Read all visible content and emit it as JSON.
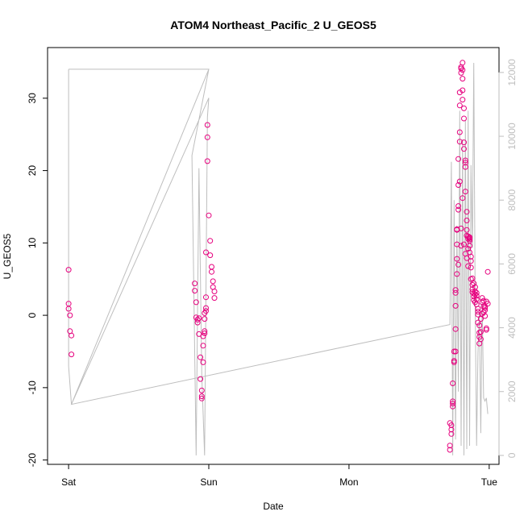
{
  "chart_data": {
    "type": "scatter",
    "title": "ATOM4 Northeast_Pacific_2 U_GEOS5",
    "xlabel": "Date",
    "ylabel": "U_GEOS5",
    "x_ticks": [
      {
        "day": 0,
        "label": "Sat"
      },
      {
        "day": 1,
        "label": "Sun"
      },
      {
        "day": 2,
        "label": "Mon"
      },
      {
        "day": 3,
        "label": "Tue"
      }
    ],
    "xlim": [
      -0.15,
      3.07
    ],
    "ylim": [
      -20.6,
      37.0
    ],
    "y_ticks": [
      -20,
      -10,
      0,
      10,
      20,
      30
    ],
    "y2_ticks": [
      0,
      2000,
      4000,
      6000,
      8000,
      10000,
      12000
    ],
    "y2lim": [
      -280,
      12780
    ],
    "grid": false,
    "colors": {
      "points": "#e6007e",
      "altitude_line": "#bebebe",
      "axis": "#000000",
      "right_axis": "#bebebe"
    },
    "series": [
      {
        "role": "points",
        "points": [
          [
            0.0,
            6.3
          ],
          [
            0.0,
            1.6
          ],
          [
            0.0,
            0.9
          ],
          [
            0.01,
            0.0
          ],
          [
            0.01,
            -2.2
          ],
          [
            0.02,
            -2.8
          ],
          [
            0.02,
            -5.4
          ],
          [
            0.9,
            4.4
          ],
          [
            0.9,
            3.4
          ],
          [
            0.91,
            1.8
          ],
          [
            0.91,
            -0.3
          ],
          [
            0.92,
            -0.6
          ],
          [
            0.92,
            -1.0
          ],
          [
            0.93,
            -0.4
          ],
          [
            0.93,
            -2.6
          ],
          [
            0.94,
            -5.8
          ],
          [
            0.94,
            -8.8
          ],
          [
            0.95,
            -10.4
          ],
          [
            0.95,
            -11.2
          ],
          [
            0.95,
            -11.5
          ],
          [
            0.96,
            -6.5
          ],
          [
            0.96,
            -4.2
          ],
          [
            0.96,
            -2.9
          ],
          [
            0.97,
            -2.2
          ],
          [
            0.97,
            -2.5
          ],
          [
            0.97,
            -0.5
          ],
          [
            0.97,
            0.3
          ],
          [
            0.98,
            0.6
          ],
          [
            0.98,
            1.0
          ],
          [
            0.98,
            2.5
          ],
          [
            0.98,
            8.7
          ],
          [
            0.99,
            21.3
          ],
          [
            0.99,
            24.6
          ],
          [
            0.99,
            26.3
          ],
          [
            1.0,
            13.8
          ],
          [
            1.01,
            10.3
          ],
          [
            1.01,
            8.3
          ],
          [
            1.02,
            6.7
          ],
          [
            1.02,
            6.0
          ],
          [
            1.03,
            4.7
          ],
          [
            1.03,
            3.9
          ],
          [
            1.04,
            3.3
          ],
          [
            1.04,
            2.4
          ],
          [
            2.72,
            -18.6
          ],
          [
            2.72,
            -18.0
          ],
          [
            2.72,
            -14.9
          ],
          [
            2.73,
            -15.2
          ],
          [
            2.73,
            -15.8
          ],
          [
            2.73,
            -16.4
          ],
          [
            2.74,
            -12.2
          ],
          [
            2.74,
            -12.6
          ],
          [
            2.74,
            -11.9
          ],
          [
            2.74,
            -9.4
          ],
          [
            2.75,
            -6.5
          ],
          [
            2.75,
            -6.3
          ],
          [
            2.75,
            -5.0
          ],
          [
            2.76,
            -5.0
          ],
          [
            2.76,
            -1.9
          ],
          [
            2.76,
            1.3
          ],
          [
            2.76,
            3.1
          ],
          [
            2.77,
            5.7
          ],
          [
            2.77,
            7.8
          ],
          [
            2.77,
            9.8
          ],
          [
            2.77,
            11.8
          ],
          [
            2.78,
            14.6
          ],
          [
            2.78,
            18.0
          ],
          [
            2.78,
            21.6
          ],
          [
            2.79,
            25.3
          ],
          [
            2.79,
            29.0
          ],
          [
            2.79,
            30.8
          ],
          [
            2.8,
            33.5
          ],
          [
            2.8,
            34.1
          ],
          [
            2.8,
            34.3
          ],
          [
            2.81,
            34.9
          ],
          [
            2.81,
            33.9
          ],
          [
            2.81,
            32.7
          ],
          [
            2.81,
            31.1
          ],
          [
            2.81,
            29.8
          ],
          [
            2.82,
            28.6
          ],
          [
            2.82,
            27.2
          ],
          [
            2.82,
            23.9
          ],
          [
            2.82,
            23.0
          ],
          [
            2.83,
            21.4
          ],
          [
            2.83,
            21.1
          ],
          [
            2.83,
            17.1
          ],
          [
            2.84,
            14.3
          ],
          [
            2.84,
            13.1
          ],
          [
            2.84,
            11.8
          ],
          [
            2.85,
            10.9
          ],
          [
            2.85,
            10.6
          ],
          [
            2.85,
            10.9
          ],
          [
            2.86,
            10.5
          ],
          [
            2.86,
            10.7
          ],
          [
            2.86,
            10.3
          ],
          [
            2.86,
            9.6
          ],
          [
            2.86,
            8.7
          ],
          [
            2.87,
            8.1
          ],
          [
            2.87,
            7.5
          ],
          [
            2.87,
            6.6
          ],
          [
            2.88,
            5.1
          ],
          [
            2.88,
            4.2
          ],
          [
            2.88,
            3.6
          ],
          [
            2.89,
            3.0
          ],
          [
            2.89,
            2.6
          ],
          [
            2.89,
            2.1
          ],
          [
            2.9,
            1.8
          ],
          [
            2.9,
            3.3
          ],
          [
            2.9,
            3.9
          ],
          [
            2.91,
            2.7
          ],
          [
            2.91,
            2.2
          ],
          [
            2.91,
            1.5
          ],
          [
            2.92,
            0.9
          ],
          [
            2.92,
            0.1
          ],
          [
            2.92,
            -1.0
          ],
          [
            2.93,
            -2.4
          ],
          [
            2.93,
            -3.0
          ],
          [
            2.93,
            -3.9
          ],
          [
            2.94,
            -2.3
          ],
          [
            2.94,
            -0.5
          ],
          [
            2.95,
            1.8
          ],
          [
            2.95,
            2.4
          ],
          [
            2.96,
            1.2
          ],
          [
            2.96,
            0.4
          ],
          [
            2.97,
            0.7
          ],
          [
            2.97,
            1.2
          ],
          [
            2.98,
            -1.8
          ],
          [
            2.98,
            -2.0
          ],
          [
            2.99,
            1.6
          ],
          [
            2.99,
            6.0
          ],
          [
            2.83,
            20.5
          ],
          [
            2.79,
            24.0
          ],
          [
            2.8,
            9.6
          ],
          [
            2.78,
            15.1
          ],
          [
            2.77,
            11.9
          ],
          [
            2.84,
            7.9
          ],
          [
            2.85,
            6.8
          ],
          [
            2.87,
            5.0
          ],
          [
            2.88,
            3.2
          ],
          [
            2.92,
            0.5
          ],
          [
            2.95,
            0.2
          ],
          [
            2.97,
            1.0
          ],
          [
            2.98,
            1.9
          ],
          [
            2.76,
            3.5
          ],
          [
            2.8,
            12.0
          ],
          [
            2.81,
            16.2
          ],
          [
            2.79,
            18.5
          ],
          [
            2.78,
            7.0
          ],
          [
            2.82,
            9.8
          ],
          [
            2.83,
            8.5
          ],
          [
            2.84,
            11.0
          ],
          [
            2.86,
            10.8
          ],
          [
            2.85,
            9.2
          ],
          [
            2.89,
            4.4
          ],
          [
            2.9,
            2.9
          ],
          [
            2.91,
            3.1
          ],
          [
            2.93,
            -1.4
          ],
          [
            2.94,
            -3.3
          ],
          [
            2.96,
            2.0
          ],
          [
            2.97,
            -0.1
          ]
        ]
      },
      {
        "role": "altitude_line",
        "points": [
          [
            0.0,
            12100
          ],
          [
            0.0,
            2800
          ],
          [
            0.02,
            1600
          ],
          [
            1.0,
            12100
          ],
          [
            0.0,
            12100
          ],
          [
            1.0,
            12100
          ],
          [
            0.88,
            9400
          ],
          [
            0.91,
            0
          ],
          [
            0.93,
            9000
          ],
          [
            0.95,
            2500
          ],
          [
            0.97,
            0
          ],
          [
            0.99,
            10600
          ],
          [
            1.0,
            11200
          ],
          [
            0.02,
            1600
          ],
          [
            2.72,
            4100
          ],
          [
            2.73,
            9200
          ],
          [
            2.74,
            0
          ],
          [
            2.75,
            8000
          ],
          [
            2.76,
            500
          ],
          [
            2.77,
            7200
          ],
          [
            2.78,
            2000
          ],
          [
            2.79,
            10800
          ],
          [
            2.8,
            300
          ],
          [
            2.81,
            9900
          ],
          [
            2.82,
            0
          ],
          [
            2.83,
            10500
          ],
          [
            2.84,
            200
          ],
          [
            2.85,
            10800
          ],
          [
            2.86,
            300
          ],
          [
            2.87,
            9100
          ],
          [
            2.88,
            6500
          ],
          [
            2.89,
            12300
          ],
          [
            2.9,
            4900
          ],
          [
            2.91,
            300
          ],
          [
            2.92,
            3200
          ],
          [
            2.93,
            4500
          ],
          [
            2.94,
            700
          ],
          [
            2.95,
            4800
          ],
          [
            2.96,
            1800
          ],
          [
            2.97,
            1700
          ],
          [
            2.98,
            1800
          ],
          [
            2.99,
            1300
          ]
        ]
      }
    ]
  }
}
